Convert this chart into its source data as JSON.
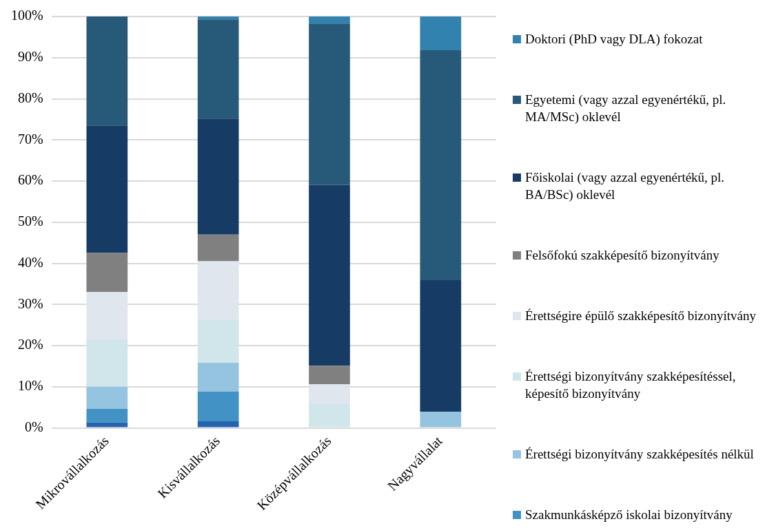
{
  "chart_data": {
    "type": "bar",
    "stacked": true,
    "legend": "right",
    "grid": "y",
    "categories": [
      "Mikrovállalkozás",
      "Kisvállalkozás",
      "Középvállalkozás",
      "Nagyvállalat"
    ],
    "ylim": [
      0,
      100
    ],
    "yticks": [
      {
        "value": 0,
        "label": "0%"
      },
      {
        "value": 10,
        "label": "10%"
      },
      {
        "value": 20,
        "label": "20%"
      },
      {
        "value": 30,
        "label": "30%"
      },
      {
        "value": 40,
        "label": "40%"
      },
      {
        "value": 50,
        "label": "50%"
      },
      {
        "value": 60,
        "label": "60%"
      },
      {
        "value": 70,
        "label": "70%"
      },
      {
        "value": 80,
        "label": "80%"
      },
      {
        "value": 90,
        "label": "90%"
      },
      {
        "value": 100,
        "label": "100%"
      }
    ],
    "series": [
      {
        "color": "#2563ae",
        "values": [
          1.3,
          1.6,
          0,
          0
        ]
      },
      {
        "name": "Szakmunkásképző iskolai bizonyítvány",
        "color": "#4292c6",
        "values": [
          3.3,
          7.2,
          0,
          0
        ]
      },
      {
        "name": "Érettségi bizonyítvány szakképesítés nélkül",
        "color": "#94c4e0",
        "values": [
          5.4,
          7.0,
          0,
          3.9
        ]
      },
      {
        "name": "Érettségi bizonyítvány szakképesítéssel, képesítő bizonyítvány",
        "color": "#d0e6ea",
        "values": [
          11.5,
          10.6,
          5.9,
          0
        ]
      },
      {
        "name": "Érettségire épülő szakképesítő bizonyítvány",
        "color": "#dfe6ee",
        "values": [
          11.5,
          14.1,
          4.7,
          0
        ]
      },
      {
        "name": "Felsőfokú szakképesítő bizonyítvány",
        "color": "#808080",
        "values": [
          9.5,
          6.5,
          4.5,
          0
        ]
      },
      {
        "name": "Főiskolai (vagy azzal egyenértékű, pl. BA/BSc) oklevél",
        "color": "#163c66",
        "values": [
          31.0,
          28.2,
          44.0,
          32.0
        ]
      },
      {
        "name": "Egyetemi (vagy azzal egyenértékű, pl. MA/MSc) oklevél",
        "color": "#265a78",
        "values": [
          26.5,
          24.1,
          39.2,
          55.9
        ]
      },
      {
        "name": "Doktori (PhD vagy DLA) fokozat",
        "color": "#3282b0",
        "values": [
          0,
          0.7,
          1.7,
          8.2
        ]
      }
    ]
  }
}
